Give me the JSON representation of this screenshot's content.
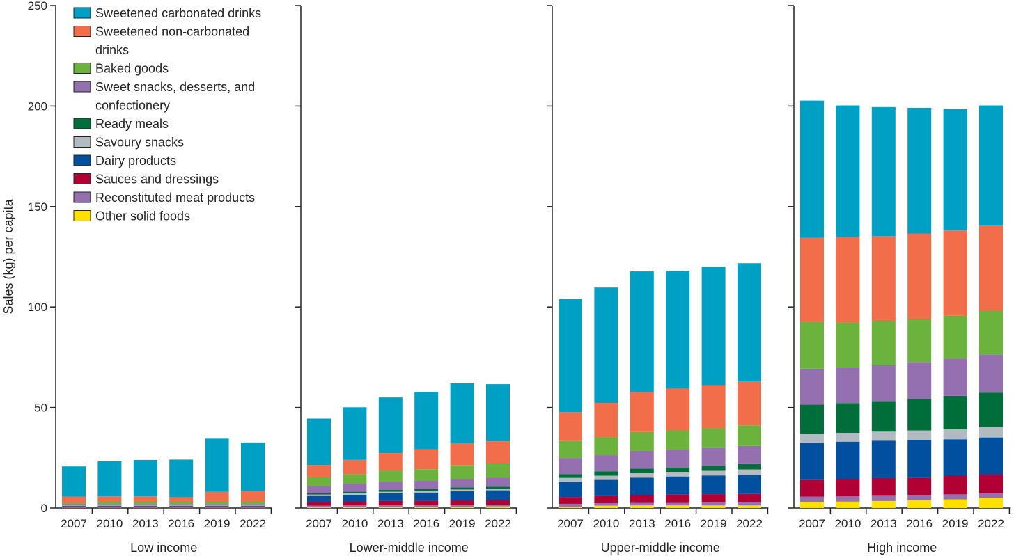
{
  "chart_data": {
    "type": "bar",
    "stacked": true,
    "ylabel": "Sales (kg) per capita",
    "ylim": [
      0,
      250
    ],
    "yticks": [
      "0",
      "50",
      "100",
      "150",
      "200",
      "250"
    ],
    "categories": [
      "2007",
      "2010",
      "2013",
      "2016",
      "2019",
      "2022"
    ],
    "legend": {
      "placement": "top-left",
      "entries": [
        {
          "name": "Sweetened carbonated drinks",
          "lines": [
            "Sweetened carbonated drinks"
          ],
          "color": "#009fc4"
        },
        {
          "name": "Sweetened non-carbonated drinks",
          "lines": [
            "Sweetened non-carbonated",
            "drinks"
          ],
          "color": "#f26d4a"
        },
        {
          "name": "Baked goods",
          "lines": [
            "Baked goods"
          ],
          "color": "#6bb33c"
        },
        {
          "name": "Sweet snacks, desserts, and confectionery",
          "lines": [
            "Sweet snacks, desserts, and",
            "confectionery"
          ],
          "color": "#9470b0"
        },
        {
          "name": "Ready meals",
          "lines": [
            "Ready meals"
          ],
          "color": "#006e3a"
        },
        {
          "name": "Savoury snacks",
          "lines": [
            "Savoury snacks"
          ],
          "color": "#b2bbc1"
        },
        {
          "name": "Dairy products",
          "lines": [
            "Dairy products"
          ],
          "color": "#00509f"
        },
        {
          "name": "Sauces and dressings",
          "lines": [
            "Sauces and dressings"
          ],
          "color": "#b10034"
        },
        {
          "name": "Reconstituted meat products",
          "lines": [
            "Reconstituted meat products"
          ],
          "color": "#9470b0"
        },
        {
          "name": "Other solid foods",
          "lines": [
            "Other solid foods"
          ],
          "color": "#ffe000"
        }
      ]
    },
    "stack_order_bottom_to_top": [
      "Other solid foods",
      "Reconstituted meat products",
      "Sauces and dressings",
      "Dairy products",
      "Savoury snacks",
      "Ready meals",
      "Sweet snacks, desserts, and confectionery",
      "Baked goods",
      "Sweetened non-carbonated drinks",
      "Sweetened carbonated drinks"
    ],
    "panels": [
      {
        "title": "Low income",
        "values": [
          [
            0.1,
            0.2,
            0.5,
            0.3,
            0.2,
            0.2,
            0.4,
            0.5,
            3.3,
            15.0
          ],
          [
            0.1,
            0.2,
            0.5,
            0.3,
            0.2,
            0.2,
            0.5,
            0.9,
            2.9,
            17.5
          ],
          [
            0.1,
            0.2,
            0.5,
            0.3,
            0.2,
            0.2,
            0.5,
            0.9,
            2.9,
            18.1
          ],
          [
            0.1,
            0.2,
            0.5,
            0.3,
            0.2,
            0.2,
            0.5,
            0.9,
            2.5,
            18.7
          ],
          [
            0.1,
            0.2,
            0.5,
            0.3,
            0.2,
            0.2,
            0.5,
            1.0,
            5.1,
            26.4
          ],
          [
            0.1,
            0.2,
            0.5,
            0.3,
            0.2,
            0.2,
            0.5,
            1.0,
            5.5,
            24.1
          ]
        ]
      },
      {
        "title": "Lower-middle income",
        "values": [
          [
            0.3,
            0.9,
            1.7,
            3.1,
            0.7,
            0.6,
            3.6,
            4.5,
            6.0,
            23.1
          ],
          [
            0.4,
            0.9,
            1.8,
            3.5,
            0.7,
            0.8,
            3.9,
            4.9,
            7.1,
            26.1
          ],
          [
            0.5,
            0.9,
            2.1,
            3.8,
            0.8,
            0.9,
            4.0,
            5.5,
            8.8,
            27.7
          ],
          [
            0.6,
            0.9,
            2.1,
            4.1,
            0.8,
            1.0,
            4.0,
            5.8,
            9.9,
            28.5
          ],
          [
            0.7,
            0.9,
            2.2,
            4.6,
            0.8,
            1.0,
            4.3,
            6.7,
            11.1,
            29.7
          ],
          [
            0.8,
            0.9,
            2.2,
            4.9,
            0.8,
            1.0,
            4.6,
            7.0,
            11.0,
            28.4
          ]
        ]
      },
      {
        "title": "Upper-middle income",
        "values": [
          [
            0.7,
            1.4,
            3.4,
            7.4,
            2.1,
            1.9,
            8.0,
            8.4,
            14.4,
            56.3
          ],
          [
            1.2,
            1.2,
            3.7,
            7.9,
            2.1,
            2.1,
            8.1,
            9.0,
            17.0,
            57.4
          ],
          [
            1.3,
            1.2,
            4.0,
            8.6,
            2.2,
            2.3,
            8.8,
            9.4,
            19.8,
            60.1
          ],
          [
            1.3,
            1.2,
            4.2,
            9.0,
            2.2,
            2.3,
            8.8,
            9.6,
            20.8,
            58.6
          ],
          [
            1.3,
            1.4,
            4.2,
            9.3,
            2.3,
            2.4,
            9.1,
            9.8,
            21.3,
            59.0
          ],
          [
            1.3,
            1.5,
            4.2,
            9.5,
            2.7,
            2.7,
            9.0,
            10.2,
            21.8,
            58.9
          ]
        ]
      },
      {
        "title": "High income",
        "values": [
          [
            3.0,
            2.7,
            8.4,
            18.3,
            4.4,
            14.6,
            17.9,
            23.3,
            41.9,
            68.2
          ],
          [
            3.2,
            2.6,
            8.7,
            18.5,
            4.4,
            14.8,
            17.7,
            22.4,
            42.7,
            65.3
          ],
          [
            3.5,
            2.6,
            8.8,
            18.6,
            4.5,
            15.2,
            17.9,
            22.0,
            42.2,
            64.2
          ],
          [
            3.9,
            2.5,
            8.7,
            18.8,
            4.7,
            15.7,
            18.3,
            21.5,
            42.5,
            62.5
          ],
          [
            4.3,
            2.5,
            9.3,
            18.1,
            5.0,
            16.6,
            18.5,
            21.4,
            42.4,
            60.5
          ],
          [
            5.0,
            2.4,
            9.4,
            18.3,
            5.2,
            17.1,
            19.0,
            21.6,
            42.5,
            59.8
          ]
        ]
      }
    ]
  }
}
